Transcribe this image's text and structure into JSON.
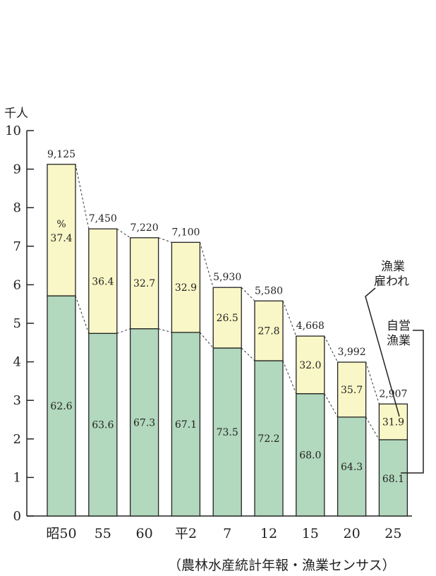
{
  "chart_data": {
    "type": "bar",
    "stacked": true,
    "y_unit": "千人",
    "ylim": [
      0,
      10
    ],
    "yticks": [
      "0",
      "1",
      "2",
      "3",
      "4",
      "5",
      "6",
      "7",
      "8",
      "9",
      "10"
    ],
    "categories": [
      "昭50",
      "55",
      "60",
      "平2",
      "7",
      "12",
      "15",
      "20",
      "25"
    ],
    "totals": [
      9.125,
      7.45,
      7.22,
      7.1,
      5.93,
      5.58,
      4.668,
      3.992,
      2.907
    ],
    "total_labels": [
      "9,125",
      "7,450",
      "7,220",
      "7,100",
      "5,930",
      "5,580",
      "4,668",
      "3,992",
      "2,907"
    ],
    "series": [
      {
        "name": "自営漁業",
        "color": "#b2d8bd",
        "percent": [
          62.6,
          63.6,
          67.3,
          67.1,
          73.5,
          72.2,
          68.0,
          64.3,
          68.1
        ],
        "labels": [
          "62.6",
          "63.6",
          "67.3",
          "67.1",
          "73.5",
          "72.2",
          "68.0",
          "64.3",
          "68.1"
        ]
      },
      {
        "name": "漁業雇われ",
        "color": "#f9f7c7",
        "percent": [
          37.4,
          36.4,
          32.7,
          32.9,
          26.5,
          27.8,
          32.0,
          35.7,
          31.9
        ],
        "labels": [
          "37.4",
          "36.4",
          "32.7",
          "32.9",
          "26.5",
          "27.8",
          "32.0",
          "35.7",
          "31.9"
        ]
      }
    ],
    "percent_sign": "%",
    "legend": {
      "hired_line1": "漁業",
      "hired_line2": "雇われ",
      "self_line1": "自営",
      "self_line2": "漁業"
    },
    "source": "（農林水産統計年報・漁業センサス）"
  }
}
